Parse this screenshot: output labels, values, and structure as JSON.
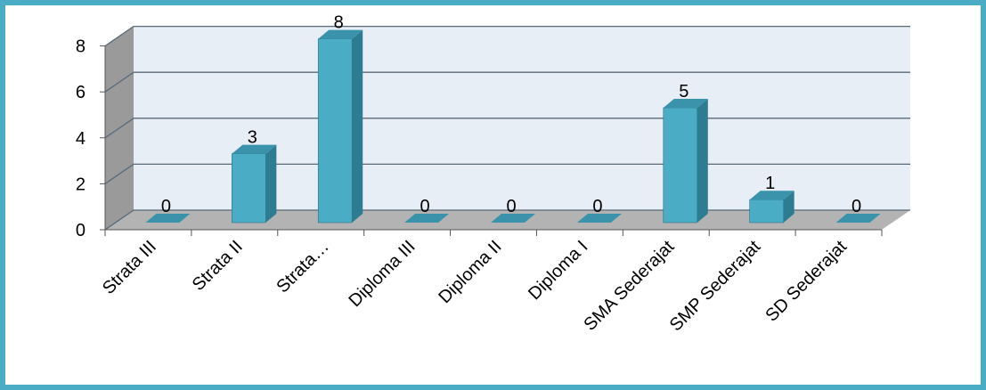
{
  "chart_data": {
    "type": "bar",
    "categories": [
      "Strata III",
      "Strata II",
      "Strata…",
      "Diploma III",
      "Diploma II",
      "Diploma I",
      "SMA Sederajat",
      "SMP Sederajat",
      "SD Sederajat"
    ],
    "values": [
      0,
      3,
      8,
      0,
      0,
      0,
      5,
      1,
      0
    ],
    "ylim": [
      0,
      8
    ],
    "yticks": [
      0,
      2,
      4,
      6,
      8
    ],
    "grid": true,
    "style": "3d-column",
    "colors": {
      "bar_front": "#4bacc6",
      "bar_side": "#2e7c91",
      "bar_top": "#3a93ab",
      "back_wall": "#e8eef6",
      "side_wall": "#9a9a9a",
      "floor": "#b3b3b3",
      "gridline": "#5a6a78",
      "border": "#4bacc6"
    }
  }
}
